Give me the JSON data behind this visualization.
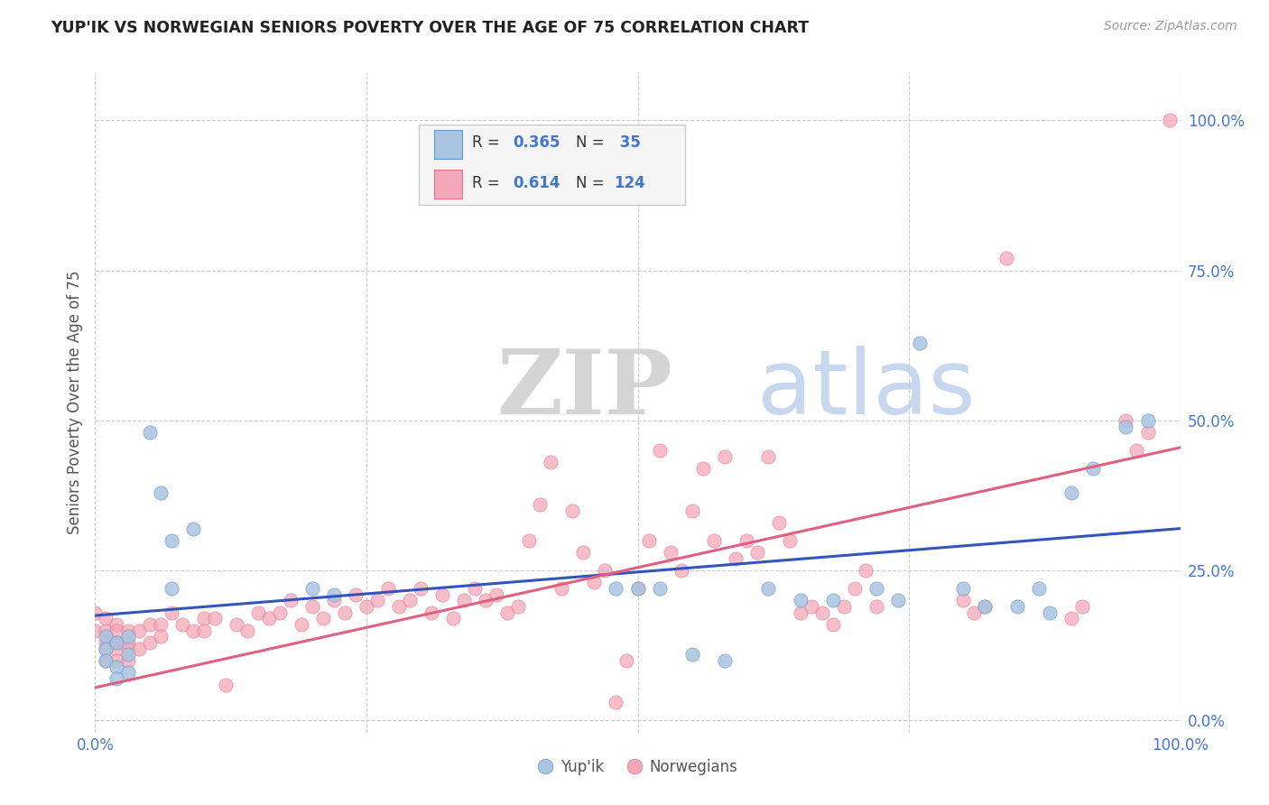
{
  "title": "YUP'IK VS NORWEGIAN SENIORS POVERTY OVER THE AGE OF 75 CORRELATION CHART",
  "source": "Source: ZipAtlas.com",
  "ylabel": "Seniors Poverty Over the Age of 75",
  "xlim": [
    0,
    1
  ],
  "ylim": [
    -0.02,
    1.08
  ],
  "yticks": [
    0,
    0.25,
    0.5,
    0.75,
    1.0
  ],
  "ytick_labels": [
    "0.0%",
    "25.0%",
    "50.0%",
    "75.0%",
    "100.0%"
  ],
  "xticks": [
    0,
    0.25,
    0.5,
    0.75,
    1.0
  ],
  "xtick_labels": [
    "0.0%",
    "",
    "",
    "",
    "100.0%"
  ],
  "background_color": "#ffffff",
  "grid_color": "#cccccc",
  "blue_color": "#a8c4e0",
  "pink_color": "#f4a8b8",
  "blue_edge_color": "#6699cc",
  "pink_edge_color": "#e87090",
  "blue_line_color": "#3355bb",
  "pink_line_color": "#e06080",
  "title_color": "#222222",
  "source_color": "#999999",
  "tick_color": "#4477cc",
  "blue_scatter": [
    [
      0.01,
      0.14
    ],
    [
      0.01,
      0.12
    ],
    [
      0.01,
      0.1
    ],
    [
      0.02,
      0.13
    ],
    [
      0.02,
      0.09
    ],
    [
      0.02,
      0.07
    ],
    [
      0.03,
      0.14
    ],
    [
      0.03,
      0.11
    ],
    [
      0.03,
      0.08
    ],
    [
      0.05,
      0.48
    ],
    [
      0.06,
      0.38
    ],
    [
      0.07,
      0.3
    ],
    [
      0.07,
      0.22
    ],
    [
      0.09,
      0.32
    ],
    [
      0.2,
      0.22
    ],
    [
      0.22,
      0.21
    ],
    [
      0.48,
      0.22
    ],
    [
      0.5,
      0.22
    ],
    [
      0.52,
      0.22
    ],
    [
      0.55,
      0.11
    ],
    [
      0.58,
      0.1
    ],
    [
      0.62,
      0.22
    ],
    [
      0.65,
      0.2
    ],
    [
      0.68,
      0.2
    ],
    [
      0.72,
      0.22
    ],
    [
      0.74,
      0.2
    ],
    [
      0.76,
      0.63
    ],
    [
      0.8,
      0.22
    ],
    [
      0.82,
      0.19
    ],
    [
      0.85,
      0.19
    ],
    [
      0.87,
      0.22
    ],
    [
      0.88,
      0.18
    ],
    [
      0.9,
      0.38
    ],
    [
      0.92,
      0.42
    ],
    [
      0.95,
      0.49
    ],
    [
      0.97,
      0.5
    ]
  ],
  "pink_scatter": [
    [
      0.0,
      0.18
    ],
    [
      0.0,
      0.15
    ],
    [
      0.01,
      0.17
    ],
    [
      0.01,
      0.15
    ],
    [
      0.01,
      0.13
    ],
    [
      0.01,
      0.12
    ],
    [
      0.01,
      0.1
    ],
    [
      0.02,
      0.16
    ],
    [
      0.02,
      0.15
    ],
    [
      0.02,
      0.13
    ],
    [
      0.02,
      0.12
    ],
    [
      0.02,
      0.1
    ],
    [
      0.03,
      0.15
    ],
    [
      0.03,
      0.13
    ],
    [
      0.03,
      0.12
    ],
    [
      0.03,
      0.1
    ],
    [
      0.04,
      0.15
    ],
    [
      0.04,
      0.12
    ],
    [
      0.05,
      0.16
    ],
    [
      0.05,
      0.13
    ],
    [
      0.06,
      0.16
    ],
    [
      0.06,
      0.14
    ],
    [
      0.07,
      0.18
    ],
    [
      0.08,
      0.16
    ],
    [
      0.09,
      0.15
    ],
    [
      0.1,
      0.17
    ],
    [
      0.1,
      0.15
    ],
    [
      0.11,
      0.17
    ],
    [
      0.12,
      0.06
    ],
    [
      0.13,
      0.16
    ],
    [
      0.14,
      0.15
    ],
    [
      0.15,
      0.18
    ],
    [
      0.16,
      0.17
    ],
    [
      0.17,
      0.18
    ],
    [
      0.18,
      0.2
    ],
    [
      0.19,
      0.16
    ],
    [
      0.2,
      0.19
    ],
    [
      0.21,
      0.17
    ],
    [
      0.22,
      0.2
    ],
    [
      0.23,
      0.18
    ],
    [
      0.24,
      0.21
    ],
    [
      0.25,
      0.19
    ],
    [
      0.26,
      0.2
    ],
    [
      0.27,
      0.22
    ],
    [
      0.28,
      0.19
    ],
    [
      0.29,
      0.2
    ],
    [
      0.3,
      0.22
    ],
    [
      0.31,
      0.18
    ],
    [
      0.32,
      0.21
    ],
    [
      0.33,
      0.17
    ],
    [
      0.34,
      0.2
    ],
    [
      0.35,
      0.22
    ],
    [
      0.36,
      0.2
    ],
    [
      0.37,
      0.21
    ],
    [
      0.38,
      0.18
    ],
    [
      0.39,
      0.19
    ],
    [
      0.4,
      0.3
    ],
    [
      0.41,
      0.36
    ],
    [
      0.42,
      0.43
    ],
    [
      0.43,
      0.22
    ],
    [
      0.44,
      0.35
    ],
    [
      0.45,
      0.28
    ],
    [
      0.46,
      0.23
    ],
    [
      0.47,
      0.25
    ],
    [
      0.48,
      0.03
    ],
    [
      0.49,
      0.1
    ],
    [
      0.5,
      0.22
    ],
    [
      0.51,
      0.3
    ],
    [
      0.52,
      0.45
    ],
    [
      0.53,
      0.28
    ],
    [
      0.54,
      0.25
    ],
    [
      0.55,
      0.35
    ],
    [
      0.56,
      0.42
    ],
    [
      0.57,
      0.3
    ],
    [
      0.58,
      0.44
    ],
    [
      0.59,
      0.27
    ],
    [
      0.6,
      0.3
    ],
    [
      0.61,
      0.28
    ],
    [
      0.62,
      0.44
    ],
    [
      0.63,
      0.33
    ],
    [
      0.64,
      0.3
    ],
    [
      0.65,
      0.18
    ],
    [
      0.66,
      0.19
    ],
    [
      0.67,
      0.18
    ],
    [
      0.68,
      0.16
    ],
    [
      0.69,
      0.19
    ],
    [
      0.7,
      0.22
    ],
    [
      0.71,
      0.25
    ],
    [
      0.72,
      0.19
    ],
    [
      0.8,
      0.2
    ],
    [
      0.81,
      0.18
    ],
    [
      0.82,
      0.19
    ],
    [
      0.84,
      0.77
    ],
    [
      0.9,
      0.17
    ],
    [
      0.91,
      0.19
    ],
    [
      0.95,
      0.5
    ],
    [
      0.96,
      0.45
    ],
    [
      0.97,
      0.48
    ],
    [
      0.99,
      1.0
    ]
  ],
  "blue_line": {
    "x0": 0.0,
    "x1": 1.0,
    "y0": 0.175,
    "y1": 0.32
  },
  "pink_line": {
    "x0": 0.0,
    "x1": 1.0,
    "y0": 0.055,
    "y1": 0.455
  }
}
